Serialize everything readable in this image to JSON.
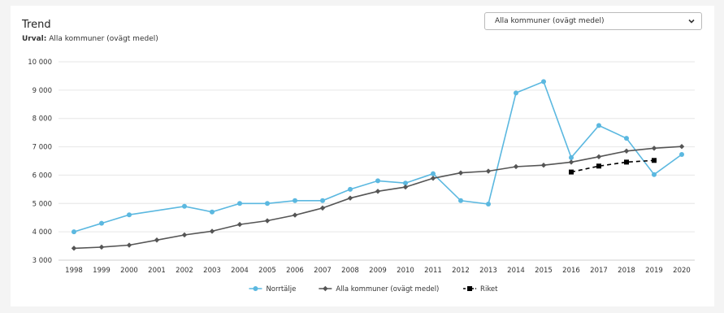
{
  "header": {
    "title": "Trend",
    "subtitle_label": "Urval:",
    "subtitle_value": "Alla kommuner (ovägt medel)"
  },
  "dropdown": {
    "selected": "Alla kommuner (ovägt medel)",
    "icon": "chevron-down-icon"
  },
  "chart_data": {
    "type": "line",
    "title": "",
    "xlabel": "",
    "ylabel": "",
    "ylim": [
      3000,
      10000
    ],
    "yticks": [
      3000,
      4000,
      5000,
      6000,
      7000,
      8000,
      9000,
      10000
    ],
    "ytick_labels": [
      "3 000",
      "4 000",
      "5 000",
      "6 000",
      "7 000",
      "8 000",
      "9 000",
      "10 000"
    ],
    "x": [
      "1998",
      "1999",
      "2000",
      "2001",
      "2002",
      "2003",
      "2004",
      "2005",
      "2006",
      "2007",
      "2008",
      "2009",
      "2010",
      "2011",
      "2012",
      "2013",
      "2014",
      "2015",
      "2016",
      "2017",
      "2018",
      "2019",
      "2020"
    ],
    "grid": true,
    "legend_position": "bottom-center",
    "series": [
      {
        "name": "Norrtälje",
        "color": "#5bb8e0",
        "marker": "circle",
        "dashed": false,
        "values": [
          4000,
          4300,
          4600,
          null,
          4900,
          4700,
          5000,
          5000,
          5100,
          5100,
          5500,
          5800,
          5720,
          6050,
          5100,
          4980,
          8900,
          9300,
          6620,
          7750,
          7300,
          6020,
          6730
        ]
      },
      {
        "name": "Alla kommuner (ovägt medel)",
        "color": "#555555",
        "marker": "diamond",
        "dashed": false,
        "values": [
          3420,
          3460,
          3530,
          3710,
          3890,
          4020,
          4260,
          4390,
          4590,
          4840,
          5190,
          5430,
          5580,
          5890,
          6080,
          6140,
          6300,
          6350,
          6460,
          6650,
          6850,
          6950,
          7010
        ]
      },
      {
        "name": "Riket",
        "color": "#000000",
        "marker": "square",
        "dashed": true,
        "values": [
          null,
          null,
          null,
          null,
          null,
          null,
          null,
          null,
          null,
          null,
          null,
          null,
          null,
          null,
          null,
          null,
          null,
          null,
          6110,
          6320,
          6460,
          6520,
          null
        ]
      }
    ]
  }
}
